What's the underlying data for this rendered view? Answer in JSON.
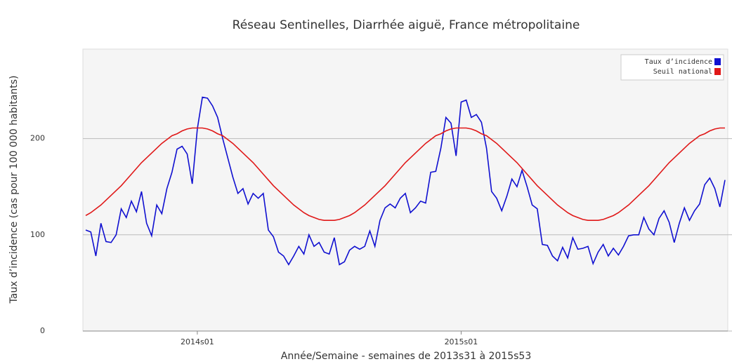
{
  "chart_data": {
    "type": "line",
    "title": "Réseau Sentinelles, Diarrhée aiguë, France métropolitaine",
    "x_label": "Année/Semaine - semaines de 2013s31 à 2015s53",
    "y_label": "Taux d’incidence (cas pour 100 000 habitants)",
    "categories": [
      null,
      null,
      null,
      null,
      null,
      null,
      null,
      null,
      null,
      null,
      null,
      null,
      null,
      null,
      null,
      null,
      null,
      null,
      null,
      null,
      null,
      null,
      "2014s01",
      null,
      null,
      null,
      null,
      null,
      null,
      null,
      null,
      null,
      null,
      null,
      null,
      null,
      null,
      null,
      null,
      null,
      null,
      null,
      null,
      null,
      null,
      null,
      null,
      null,
      null,
      null,
      null,
      null,
      null,
      null,
      null,
      null,
      null,
      null,
      null,
      null,
      null,
      null,
      null,
      null,
      null,
      null,
      null,
      null,
      null,
      null,
      null,
      null,
      null,
      null,
      "2015s01",
      null,
      null,
      null,
      null,
      null,
      null,
      null,
      null,
      null,
      null,
      null,
      null,
      null,
      null,
      null,
      null,
      null,
      null,
      null,
      null,
      null,
      null,
      null,
      null,
      null,
      null,
      null,
      null,
      null,
      null,
      null,
      null,
      null,
      null,
      null,
      null,
      null,
      null,
      null,
      null,
      null,
      null,
      null,
      null,
      null,
      null,
      null,
      null,
      null,
      null,
      null,
      null
    ],
    "ylim": [
      0,
      293
    ],
    "yticks": [
      0,
      100,
      200
    ],
    "grid": true,
    "legend": "top-right",
    "series": [
      {
        "name": "Taux d’incidence",
        "color": "#1010d0",
        "values": [
          105,
          103,
          78,
          112,
          93,
          92,
          100,
          127,
          118,
          135,
          124,
          145,
          112,
          99,
          131,
          122,
          148,
          165,
          189,
          192,
          184,
          153,
          210,
          243,
          242,
          234,
          222,
          200,
          180,
          160,
          143,
          148,
          132,
          143,
          138,
          143,
          105,
          98,
          82,
          78,
          69,
          78,
          88,
          80,
          100,
          88,
          92,
          82,
          80,
          97,
          69,
          72,
          84,
          88,
          85,
          88,
          104,
          88,
          115,
          128,
          132,
          128,
          138,
          143,
          123,
          128,
          135,
          133,
          165,
          166,
          190,
          222,
          216,
          182,
          238,
          240,
          222,
          225,
          217,
          190,
          145,
          138,
          125,
          140,
          158,
          150,
          167,
          150,
          131,
          127,
          90,
          89,
          78,
          73,
          87,
          76,
          97,
          85,
          86,
          88,
          70,
          82,
          90,
          78,
          86,
          79,
          88,
          99,
          100,
          100,
          118,
          106,
          100,
          117,
          125,
          113,
          92,
          112,
          128,
          115,
          125,
          132,
          152,
          159,
          148,
          129,
          157
        ]
      },
      {
        "name": "Seuil national",
        "color": "#e01818",
        "values": [
          120,
          123,
          127,
          131,
          136,
          141,
          146,
          151,
          157,
          163,
          169,
          175,
          180,
          185,
          190,
          195,
          199,
          203,
          205,
          208,
          210,
          211,
          211,
          211,
          210,
          208,
          205,
          203,
          199,
          195,
          190,
          185,
          180,
          175,
          169,
          163,
          157,
          151,
          146,
          141,
          136,
          131,
          127,
          123,
          120,
          118,
          116,
          115,
          115,
          115,
          116,
          118,
          120,
          123,
          127,
          131,
          136,
          141,
          146,
          151,
          157,
          163,
          169,
          175,
          180,
          185,
          190,
          195,
          199,
          203,
          205,
          208,
          210,
          211,
          211,
          211,
          210,
          208,
          205,
          203,
          199,
          195,
          190,
          185,
          180,
          175,
          169,
          163,
          157,
          151,
          146,
          141,
          136,
          131,
          127,
          123,
          120,
          118,
          116,
          115,
          115,
          115,
          116,
          118,
          120,
          123,
          127,
          131,
          136,
          141,
          146,
          151,
          157,
          163,
          169,
          175,
          180,
          185,
          190,
          195,
          199,
          203,
          205,
          208,
          210,
          211,
          211
        ]
      }
    ]
  }
}
